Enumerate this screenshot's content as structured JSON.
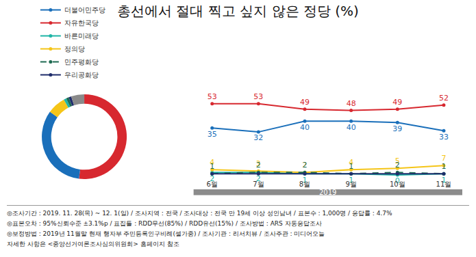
{
  "title": "총선에서 절대 찍고 싶지 않은 정당 (%)",
  "chart_data": [
    {
      "type": "pie",
      "values": [
        52,
        33,
        7,
        1,
        1,
        1,
        5
      ],
      "colors": [
        "#d7282f",
        "#1a6fba",
        "#f5c518",
        "#1fb5a6",
        "#1e6b52",
        "#1f2d6b",
        "#8a8a8a"
      ],
      "data_labels": false
    },
    {
      "type": "line",
      "categories": [
        "6월",
        "7월",
        "8월",
        "9월",
        "10월",
        "11월"
      ],
      "series": [
        {
          "name": "더불어민주당",
          "color": "#1a6fba",
          "marker": "circle",
          "line_style": "solid",
          "values": [
            35,
            32,
            40,
            40,
            39,
            33
          ]
        },
        {
          "name": "자유한국당",
          "color": "#d7282f",
          "marker": "circle",
          "line_style": "solid",
          "values": [
            53,
            53,
            49,
            48,
            49,
            52
          ]
        },
        {
          "name": "바른미래당",
          "color": "#1fb5a6",
          "marker": "circle",
          "line_style": "solid",
          "values": [
            2,
            2,
            1,
            1,
            0,
            1
          ]
        },
        {
          "name": "정의당",
          "color": "#f5c518",
          "marker": "circle",
          "line_style": "solid",
          "values": [
            4,
            3,
            2,
            4,
            5,
            7
          ]
        },
        {
          "name": "민주평화당",
          "color": "#1e6b52",
          "marker": "circle",
          "line_style": "dash",
          "values": [
            1,
            2,
            2,
            1,
            2,
            1
          ]
        },
        {
          "name": "우리공화당",
          "color": "#1f2d6b",
          "marker": "circle",
          "line_style": "solid",
          "values": [
            1,
            1,
            1,
            1,
            1,
            1
          ],
          "value_labels": [
            null,
            null,
            null,
            null,
            null,
            null
          ]
        }
      ],
      "ylim": [
        -3,
        60
      ],
      "tick_labels": "x",
      "grid": false,
      "data_labels": true,
      "legend": "top",
      "annotations": [
        "2019"
      ]
    }
  ],
  "footer": [
    "◎조사기간 : 2019. 11. 28(목) ~ 12. 1(일) / 조사지역 : 전국 / 조사대상 : 전국 만 19세 이상 성인남녀 / 표본수 : 1,000명 / 응답률 : 4.7%",
    "◎표본오차 : 95%신뢰수준 ±3.1%p / 표집틀 : RDD무선(85%) / RDD유선(15%) / 조사방법 : ARS 자동응답조사",
    "◎보정방법 : 2019년 11월말 현재 행자부 주민등록인구비례(셀가중) / 조사기관 : 리서치뷰 / 조사주관 : 미디어오늘",
    "자세한 사항은 <중앙선거여론조사심의위원회> 홈페이지 참조"
  ]
}
